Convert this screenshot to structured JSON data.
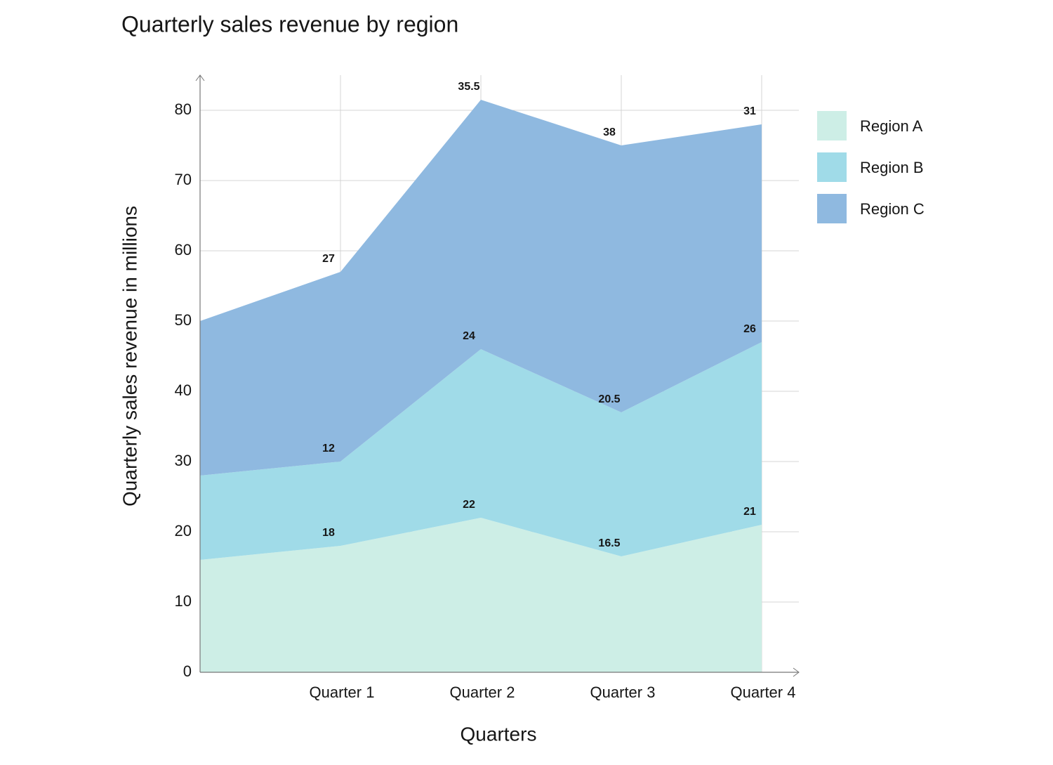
{
  "chart_data": {
    "type": "stacked_area",
    "title": "Quarterly sales revenue by region",
    "x_label": "Quarters",
    "y_label": "Quarterly sales revenue in millions",
    "categories": [
      null,
      "Quarter 1",
      "Quarter 2",
      "Quarter 3",
      "Quarter 4"
    ],
    "series": [
      {
        "name": "Region A",
        "color": "#cdeee6",
        "values": [
          16,
          18,
          22,
          16.5,
          21
        ]
      },
      {
        "name": "Region B",
        "color": "#a0dbe8",
        "values": [
          12,
          12,
          24,
          20.5,
          26
        ]
      },
      {
        "name": "Region C",
        "color": "#8fb9e0",
        "values": [
          22,
          27,
          35.5,
          38,
          31
        ]
      }
    ],
    "ylim": [
      0,
      85
    ],
    "yticks": [
      0,
      10,
      20,
      30,
      40,
      50,
      60,
      70,
      80
    ],
    "grid": true,
    "legend": "right"
  }
}
